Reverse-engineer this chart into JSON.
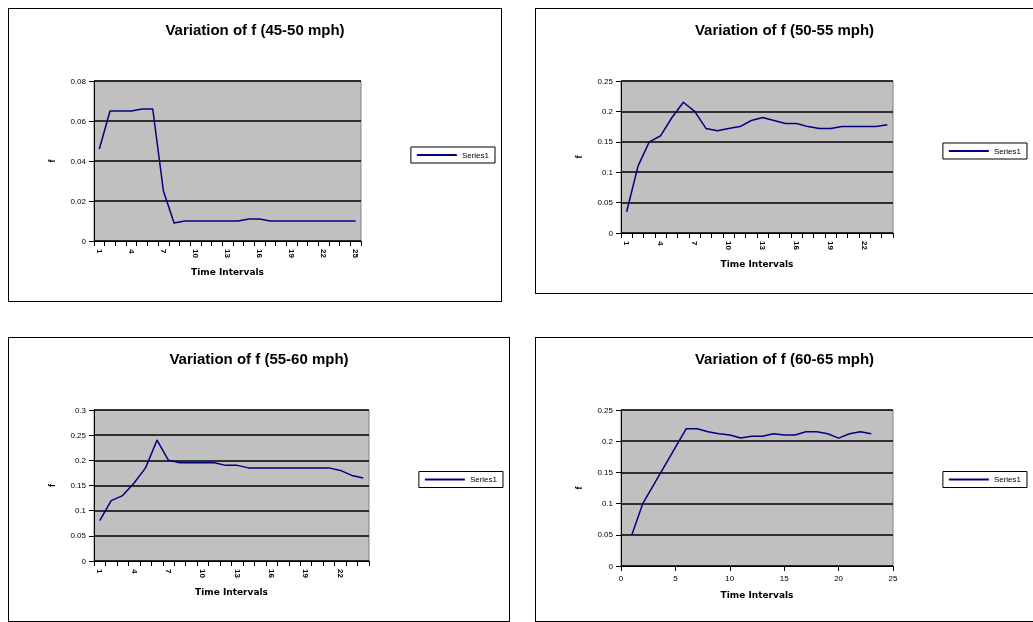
{
  "chart_data": [
    {
      "type": "line",
      "title": "Variation of f (45-50 mph)",
      "xlabel": "Time Intervals",
      "ylabel": "f",
      "categories": [
        "1",
        null,
        null,
        "4",
        null,
        null,
        "7",
        null,
        null,
        "10",
        null,
        null,
        "13",
        null,
        null,
        "16",
        null,
        null,
        "19",
        null,
        null,
        "22",
        null,
        null,
        "25"
      ],
      "series": [
        {
          "name": "Series1",
          "color": "#000080",
          "values": [
            0.046,
            0.065,
            0.065,
            0.065,
            0.066,
            0.066,
            0.025,
            0.009,
            0.01,
            0.01,
            0.01,
            0.01,
            0.01,
            0.01,
            0.011,
            0.011,
            0.01,
            0.01,
            0.01,
            0.01,
            0.01,
            0.01,
            0.01,
            0.01,
            0.01
          ]
        }
      ],
      "ylim": [
        0,
        0.08
      ],
      "yticks": [
        0,
        0.02,
        0.04,
        0.06,
        0.08
      ],
      "grid": "y",
      "legend": "right",
      "marker": "none",
      "line_style": "solid"
    },
    {
      "type": "line",
      "title": "Variation of f (50-55 mph)",
      "xlabel": "Time Intervals",
      "ylabel": "f",
      "categories": [
        "1",
        null,
        null,
        "4",
        null,
        null,
        "7",
        null,
        null,
        "10",
        null,
        null,
        "13",
        null,
        null,
        "16",
        null,
        null,
        "19",
        null,
        null,
        "22",
        null,
        null
      ],
      "series": [
        {
          "name": "Series1",
          "color": "#000080",
          "values": [
            0.035,
            0.11,
            0.15,
            0.16,
            0.19,
            0.215,
            0.2,
            0.172,
            0.168,
            0.172,
            0.175,
            0.185,
            0.19,
            0.185,
            0.18,
            0.18,
            0.175,
            0.172,
            0.172,
            0.175,
            0.175,
            0.175,
            0.175,
            0.178
          ]
        }
      ],
      "ylim": [
        0,
        0.25
      ],
      "yticks": [
        0,
        0.05,
        0.1,
        0.15,
        0.2,
        0.25
      ],
      "grid": "y",
      "legend": "right",
      "marker": "none",
      "line_style": "solid"
    },
    {
      "type": "line",
      "title": "Variation of f (55-60 mph)",
      "xlabel": "Time Intervals",
      "ylabel": "f",
      "categories": [
        "1",
        null,
        null,
        "4",
        null,
        null,
        "7",
        null,
        null,
        "10",
        null,
        null,
        "13",
        null,
        null,
        "16",
        null,
        null,
        "19",
        null,
        null,
        "22",
        null,
        null
      ],
      "series": [
        {
          "name": "Series1",
          "color": "#000080",
          "values": [
            0.08,
            0.12,
            0.13,
            0.155,
            0.185,
            0.24,
            0.2,
            0.195,
            0.195,
            0.195,
            0.195,
            0.19,
            0.19,
            0.185,
            0.185,
            0.185,
            0.185,
            0.185,
            0.185,
            0.185,
            0.185,
            0.18,
            0.17,
            0.165
          ]
        }
      ],
      "ylim": [
        0,
        0.3
      ],
      "yticks": [
        0,
        0.05,
        0.1,
        0.15,
        0.2,
        0.25,
        0.3
      ],
      "grid": "y",
      "legend": "right",
      "marker": "none",
      "line_style": "solid"
    },
    {
      "type": "line",
      "title": "Variation of f (60-65 mph)",
      "xlabel": "Time Intervals",
      "ylabel": "f",
      "x": [
        1,
        2,
        3,
        4,
        5,
        6,
        7,
        8,
        9,
        10,
        11,
        12,
        13,
        14,
        15,
        16,
        17,
        18,
        19,
        20,
        21,
        22,
        23
      ],
      "series": [
        {
          "name": "Series1",
          "color": "#000080",
          "values": [
            0.05,
            0.1,
            0.13,
            0.16,
            0.19,
            0.22,
            0.22,
            0.215,
            0.212,
            0.21,
            0.205,
            0.208,
            0.208,
            0.212,
            0.21,
            0.21,
            0.215,
            0.215,
            0.212,
            0.205,
            0.212,
            0.215,
            0.212
          ]
        }
      ],
      "xlim": [
        0,
        25
      ],
      "xticks": [
        0,
        5,
        10,
        15,
        20,
        25
      ],
      "ylim": [
        0,
        0.25
      ],
      "yticks": [
        0,
        0.05,
        0.1,
        0.15,
        0.2,
        0.25
      ],
      "grid": "y",
      "legend": "right",
      "marker": "none",
      "line_style": "solid"
    }
  ]
}
